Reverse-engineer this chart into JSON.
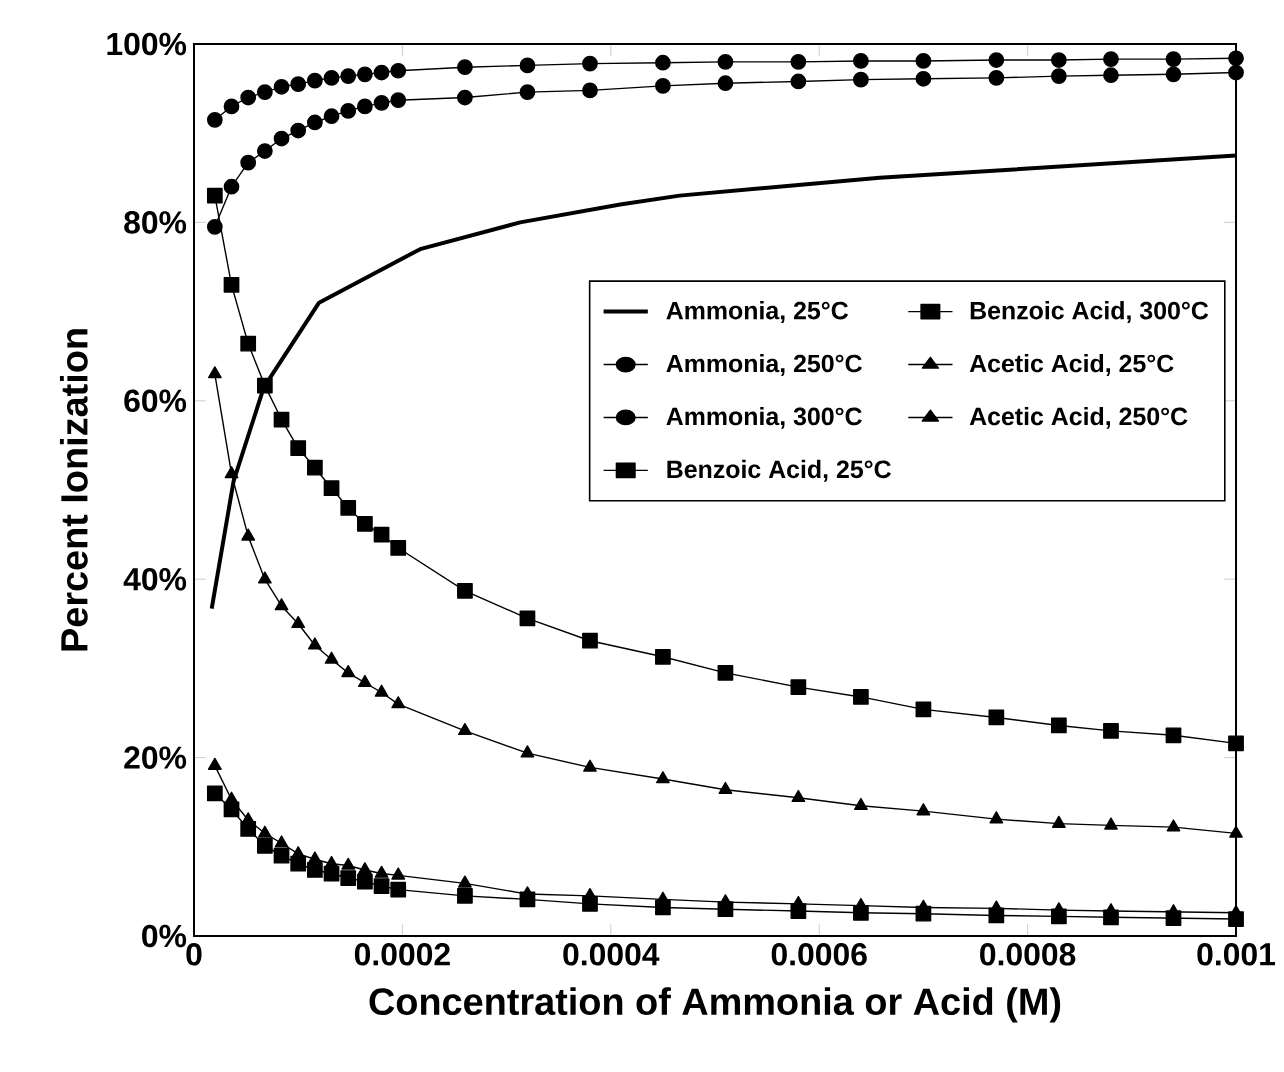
{
  "chart_data": {
    "type": "line",
    "xlabel": "Concentration of Ammonia or Acid (M)",
    "ylabel": "Percent Ionization",
    "xlim": [
      0,
      0.001
    ],
    "ylim": [
      0,
      100
    ],
    "xticks": [
      0,
      0.0002,
      0.0004,
      0.0006,
      0.0008,
      0.001
    ],
    "yticks": [
      {
        "value": 0,
        "label": "0%"
      },
      {
        "value": 20,
        "label": "20%"
      },
      {
        "value": 40,
        "label": "40%"
      },
      {
        "value": 60,
        "label": "60%"
      },
      {
        "value": 80,
        "label": "80%"
      },
      {
        "value": 100,
        "label": "100%"
      }
    ],
    "legend": "right",
    "grid": false,
    "line_style": "solid",
    "series": [
      {
        "name": "Ammonia, 25°C",
        "color": "#000000",
        "marker": "none",
        "x": [
          1.7e-05,
          3.8e-05,
          6.7e-05,
          0.00012,
          0.000217,
          0.000313,
          0.000409,
          0.000466,
          0.000658,
          0.001
        ],
        "values": [
          36.7,
          51,
          61.5,
          71,
          77,
          80,
          82,
          83,
          85,
          87.5
        ]
      },
      {
        "name": "Ammonia, 250°C",
        "color": "#000000",
        "marker": "circle",
        "x": [
          2e-05,
          3.6e-05,
          5.2e-05,
          6.8e-05,
          8.4e-05,
          0.0001,
          0.000116,
          0.000132,
          0.000148,
          0.000164,
          0.00018,
          0.000196,
          0.00026,
          0.00032,
          0.00038,
          0.00045,
          0.00051,
          0.00058,
          0.00064,
          0.0007,
          0.00077,
          0.00083,
          0.00088,
          0.00094,
          0.001
        ],
        "values": [
          79.5,
          84,
          86.7,
          88,
          89.4,
          90.3,
          91.2,
          91.9,
          92.5,
          93,
          93.4,
          93.7,
          94,
          94.6,
          94.8,
          95.3,
          95.6,
          95.8,
          96,
          96.1,
          96.2,
          96.4,
          96.5,
          96.6,
          96.8
        ]
      },
      {
        "name": "Ammonia, 300°C",
        "color": "#000000",
        "marker": "circle",
        "x": [
          2e-05,
          3.6e-05,
          5.2e-05,
          6.8e-05,
          8.4e-05,
          0.0001,
          0.000116,
          0.000132,
          0.000148,
          0.000164,
          0.00018,
          0.000196,
          0.00026,
          0.00032,
          0.00038,
          0.00045,
          0.00051,
          0.00058,
          0.00064,
          0.0007,
          0.00077,
          0.00083,
          0.00088,
          0.00094,
          0.001
        ],
        "values": [
          91.5,
          93,
          94,
          94.6,
          95.2,
          95.5,
          95.9,
          96.2,
          96.4,
          96.6,
          96.8,
          97,
          97.4,
          97.6,
          97.8,
          97.9,
          98,
          98,
          98.1,
          98.1,
          98.2,
          98.2,
          98.3,
          98.3,
          98.4
        ]
      },
      {
        "name": "Benzoic Acid, 25°C",
        "color": "#000000",
        "marker": "square",
        "x": [
          2e-05,
          3.6e-05,
          5.2e-05,
          6.8e-05,
          8.4e-05,
          0.0001,
          0.000116,
          0.000132,
          0.000148,
          0.000164,
          0.00018,
          0.000196,
          0.00026,
          0.00032,
          0.00038,
          0.00045,
          0.00051,
          0.00058,
          0.00064,
          0.0007,
          0.00077,
          0.00083,
          0.00088,
          0.00094,
          0.001
        ],
        "values": [
          83,
          73,
          66.4,
          61.7,
          57.9,
          54.7,
          52.5,
          50.2,
          48,
          46.2,
          45,
          43.5,
          38.7,
          35.6,
          33.1,
          31.3,
          29.5,
          27.9,
          26.8,
          25.4,
          24.5,
          23.6,
          23,
          22.5,
          21.6
        ]
      },
      {
        "name": "Benzoic Acid, 300°C",
        "color": "#000000",
        "marker": "square",
        "x": [
          2e-05,
          3.6e-05,
          5.2e-05,
          6.8e-05,
          8.4e-05,
          0.0001,
          0.000116,
          0.000132,
          0.000148,
          0.000164,
          0.00018,
          0.000196,
          0.00026,
          0.00032,
          0.00038,
          0.00045,
          0.00051,
          0.00058,
          0.00064,
          0.0007,
          0.00077,
          0.00083,
          0.00088,
          0.00094,
          0.001
        ],
        "values": [
          16,
          14.2,
          12,
          10.1,
          9,
          8.1,
          7.4,
          7,
          6.5,
          6.1,
          5.6,
          5.2,
          4.5,
          4.1,
          3.6,
          3.2,
          3,
          2.8,
          2.6,
          2.5,
          2.3,
          2.2,
          2.1,
          2,
          1.9
        ]
      },
      {
        "name": "Acetic Acid, 25°C",
        "color": "#000000",
        "marker": "triangle",
        "x": [
          2e-05,
          3.6e-05,
          5.2e-05,
          6.8e-05,
          8.4e-05,
          0.0001,
          0.000116,
          0.000132,
          0.000148,
          0.000164,
          0.00018,
          0.000196,
          0.00026,
          0.00032,
          0.00038,
          0.00045,
          0.00051,
          0.00058,
          0.00064,
          0.0007,
          0.00077,
          0.00083,
          0.00088,
          0.00094,
          0.001
        ],
        "values": [
          63,
          51.8,
          44.8,
          40,
          37,
          35,
          32.6,
          31,
          29.5,
          28.4,
          27.3,
          26,
          23,
          20.5,
          18.9,
          17.6,
          16.4,
          15.5,
          14.6,
          14,
          13.1,
          12.6,
          12.4,
          12.2,
          11.5
        ]
      },
      {
        "name": "Acetic Acid, 250°C",
        "color": "#000000",
        "marker": "triangle",
        "x": [
          2e-05,
          3.6e-05,
          5.2e-05,
          6.8e-05,
          8.4e-05,
          0.0001,
          0.000116,
          0.000132,
          0.000148,
          0.000164,
          0.00018,
          0.000196,
          0.00026,
          0.00032,
          0.00038,
          0.00045,
          0.00051,
          0.00058,
          0.00064,
          0.0007,
          0.00077,
          0.00083,
          0.00088,
          0.00094,
          0.001
        ],
        "values": [
          19.1,
          15.3,
          13,
          11.5,
          10.4,
          9.2,
          8.6,
          8.1,
          7.9,
          7.4,
          7,
          6.8,
          5.9,
          4.7,
          4.5,
          4.1,
          3.8,
          3.6,
          3.4,
          3.2,
          3.1,
          2.9,
          2.8,
          2.7,
          2.6
        ]
      }
    ]
  }
}
